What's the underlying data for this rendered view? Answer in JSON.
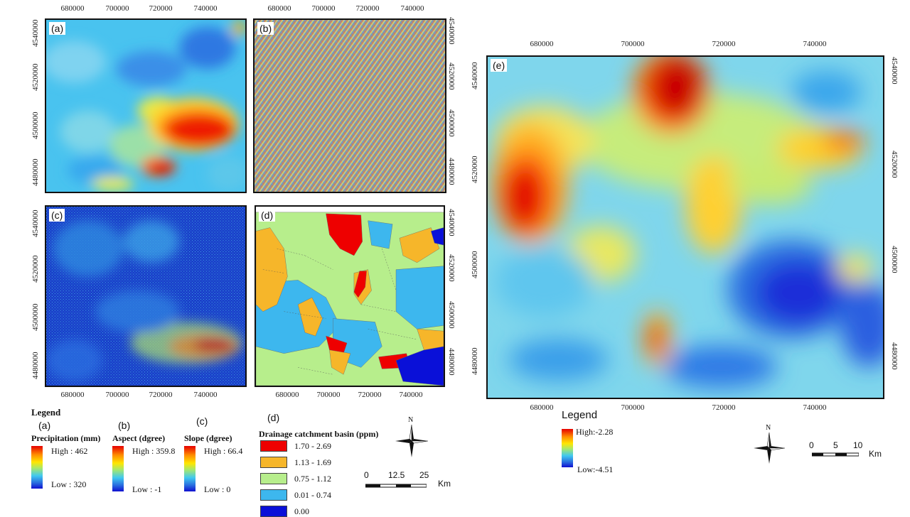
{
  "panels": {
    "a": {
      "tag": "(a)"
    },
    "b": {
      "tag": "(b)"
    },
    "c": {
      "tag": "(c)"
    },
    "d": {
      "tag": "(d)"
    },
    "e": {
      "tag": "(e)"
    }
  },
  "grid_small": {
    "x_ticks": [
      "680000",
      "700000",
      "720000",
      "740000"
    ],
    "y_ticks": [
      "4540000",
      "4520000",
      "4500000",
      "4480000"
    ]
  },
  "grid_large": {
    "x_ticks": [
      "680000",
      "700000",
      "720000",
      "740000"
    ],
    "y_ticks": [
      "4540000",
      "4520000",
      "4500000",
      "4480000"
    ]
  },
  "legend_left": {
    "title": "Legend",
    "precip": {
      "tag": "(a)",
      "title": "Precipitation (mm)",
      "high": "High : 462",
      "low": "Low : 320"
    },
    "aspect": {
      "tag": "(b)",
      "title": "Aspect (dgree)",
      "high": "High : 359.8",
      "low": "Low : -1"
    },
    "slope": {
      "tag": "(c)",
      "title": "Slope (dgree)",
      "high": "High : 66.4",
      "low": "Low : 0"
    },
    "drainage": {
      "tag": "(d)",
      "title": "Drainage catchment basin (ppm)",
      "classes": [
        {
          "label": "1.70 - 2.69",
          "color": "#ee0000"
        },
        {
          "label": "1.13 - 1.69",
          "color": "#f6b62a"
        },
        {
          "label": "0.75 - 1.12",
          "color": "#b7ee8c"
        },
        {
          "label": "0.01 - 0.74",
          "color": "#3db7ee"
        },
        {
          "label": "0.00",
          "color": "#0a10d8"
        }
      ]
    }
  },
  "scale_small": {
    "ticks": [
      "0",
      "12.5",
      "25"
    ],
    "unit": "Km"
  },
  "north_left": {
    "label": "N"
  },
  "legend_right": {
    "title": "Legend",
    "high": "High:-2.28",
    "low": "Low:-4.51"
  },
  "scale_large": {
    "ticks": [
      "0",
      "5",
      "10"
    ],
    "unit": "Km"
  },
  "north_right": {
    "label": "N"
  },
  "colors": {
    "high": "#e60000",
    "mid": "#ffe600",
    "low": "#1010d0",
    "frame": "#111111"
  }
}
